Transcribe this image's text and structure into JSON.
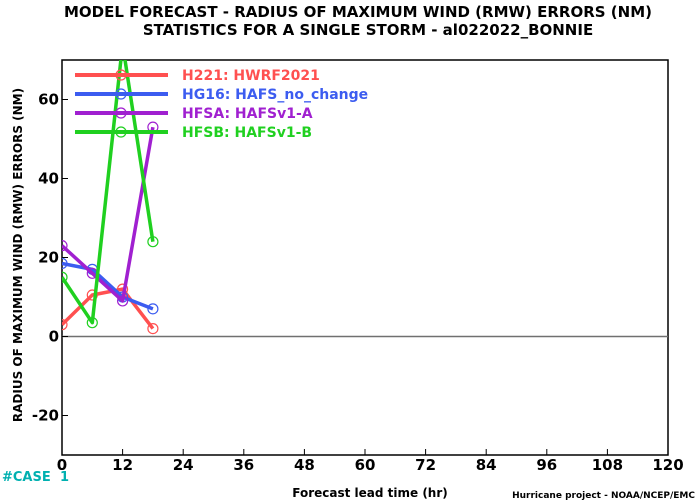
{
  "chart_data": {
    "type": "line",
    "title": "MODEL FORECAST - RADIUS OF MAXIMUM WIND (RMW) ERRORS (NM)",
    "subtitle": "STATISTICS FOR A SINGLE STORM - al022022_BONNIE",
    "xlabel": "Forecast lead time (hr)",
    "ylabel": "RADIUS OF MAXIMUM WIND (RMW) ERRORS (NM)",
    "xlim": [
      0,
      120
    ],
    "ylim": [
      -30,
      70
    ],
    "xticks": [
      0,
      12,
      24,
      36,
      48,
      60,
      72,
      84,
      96,
      108,
      120
    ],
    "yticks": [
      -20,
      0,
      20,
      40,
      60
    ],
    "ytick_labels": [
      "-20",
      "0",
      "20",
      "40",
      "60"
    ],
    "zero_line": true,
    "legend_position": "top-left",
    "case_label": "#CASE",
    "case_count": "1",
    "credit": "Hurricane project - NOAA/NCEP/EMC",
    "series": [
      {
        "name": "H221",
        "desc": "HWRF2021",
        "color": "#ff5050",
        "x": [
          0,
          6,
          12,
          18
        ],
        "values": [
          3,
          10.5,
          12,
          2
        ]
      },
      {
        "name": "HG16",
        "desc": "HAFS_no_change",
        "color": "#3c5cf0",
        "x": [
          0,
          6,
          12,
          18
        ],
        "values": [
          18.5,
          17,
          10,
          7
        ]
      },
      {
        "name": "HFSA",
        "desc": "HAFSv1-A",
        "color": "#a020d0",
        "x": [
          0,
          6,
          12,
          18
        ],
        "values": [
          23,
          16,
          9,
          53
        ]
      },
      {
        "name": "HFSB",
        "desc": "HAFSv1-B",
        "color": "#20d020",
        "x": [
          0,
          6,
          12,
          18
        ],
        "values": [
          15,
          3.5,
          74,
          24
        ]
      }
    ]
  }
}
